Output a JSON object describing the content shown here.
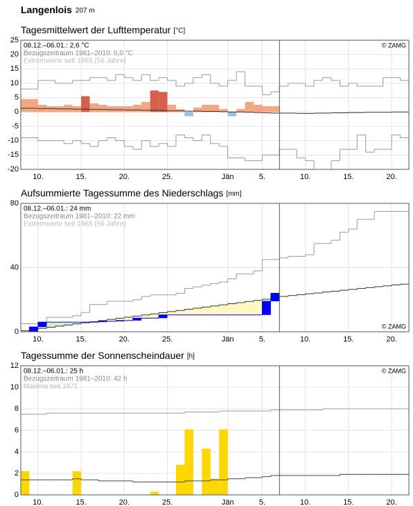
{
  "header": {
    "title": "Langenlois",
    "elevation": "207 m"
  },
  "chart_data": [
    {
      "type": "bar",
      "title": "Tagesmittelwert der Lufttemperatur",
      "unit": "[°C]",
      "annotations": [
        "08.12.–06.01.: 2,6 °C",
        "Bezugszeitraum 1981–2010: 0,0 °C",
        "Extremwerte seit 1965 (56 Jahre)"
      ],
      "credit": "© ZAMG",
      "credit_position": "top-right",
      "xlim": [
        0,
        45
      ],
      "xticks": [
        {
          "value": 2,
          "label": "10."
        },
        {
          "value": 7,
          "label": "15."
        },
        {
          "value": 12,
          "label": "20."
        },
        {
          "value": 17,
          "label": "25."
        },
        {
          "value": 24,
          "label": "Jän"
        },
        {
          "value": 28,
          "label": "5."
        },
        {
          "value": 33,
          "label": "10."
        },
        {
          "value": 38,
          "label": "15."
        },
        {
          "value": 43,
          "label": "20."
        }
      ],
      "ylim": [
        -20,
        25
      ],
      "yticks": [
        -20,
        -15,
        -10,
        -5,
        0,
        5,
        10,
        15,
        20,
        25
      ],
      "grid": true,
      "today": 30,
      "values": [
        4.5,
        4.5,
        2.5,
        2,
        2,
        2.5,
        2,
        5.5,
        3,
        2.5,
        2,
        2,
        2,
        2.5,
        3.5,
        7.5,
        7,
        2.5,
        1,
        -1.5,
        1.5,
        2.5,
        2.5,
        1,
        -1.5,
        1,
        3.5,
        2.5,
        2,
        2
      ],
      "colors": [
        "#f4a582",
        "#f4a582",
        "#f4a582",
        "#f4a582",
        "#f4a582",
        "#f4a582",
        "#f4a582",
        "#d6604d",
        "#f4a582",
        "#f4a582",
        "#f4a582",
        "#f4a582",
        "#f4a582",
        "#f4a582",
        "#f4a582",
        "#d6604d",
        "#d6604d",
        "#f4a582",
        "#f4a582",
        "#92c5de",
        "#f4a582",
        "#f4a582",
        "#f4a582",
        "#f4a582",
        "#92c5de",
        "#f4a582",
        "#f4a582",
        "#f4a582",
        "#f4a582",
        "#f4a582"
      ],
      "lines": [
        {
          "color": "#999999",
          "values": [
            8,
            8,
            11,
            11,
            10,
            10,
            11,
            11,
            12,
            12,
            11,
            13,
            12,
            11,
            13,
            11,
            12,
            11,
            9,
            10,
            12,
            13,
            10,
            9,
            11,
            14,
            9,
            9,
            6,
            7,
            9,
            10,
            10,
            9,
            11,
            12,
            11,
            9,
            10,
            9,
            9,
            9,
            12,
            12,
            11
          ]
        },
        {
          "color": "#999999",
          "values": [
            -9,
            -9,
            -10,
            -10,
            -10,
            -11,
            -10,
            -11,
            -12,
            -10,
            -9,
            -10,
            -12,
            -13,
            -10,
            -12,
            -11,
            -12,
            -8,
            -9,
            -10,
            -8,
            -11,
            -12,
            -16,
            -16,
            -17,
            -17,
            -15,
            -15,
            -13,
            -13,
            -16,
            -17,
            -20,
            -20,
            -17,
            -13,
            -13,
            -8,
            -14,
            -13,
            -13,
            -8,
            -9
          ]
        },
        {
          "color": "#333333",
          "values": [
            1.3,
            1.3,
            1.2,
            1.2,
            1.1,
            1.1,
            1,
            1,
            0.9,
            0.9,
            0.8,
            0.8,
            0.7,
            0.7,
            0.6,
            0.6,
            0.5,
            0.4,
            0.4,
            0.3,
            0.3,
            0.2,
            0.2,
            0.1,
            0,
            0,
            -0.1,
            -0.2,
            -0.3,
            -0.4,
            -0.4,
            -0.4,
            -0.5,
            -0.5,
            -0.4,
            -0.4,
            -0.3,
            -0.3,
            -0.2,
            -0.2,
            -0.1,
            -0.1,
            -0.1,
            0,
            0
          ]
        }
      ]
    },
    {
      "type": "line",
      "title": "Aufsummierte Tagessumme des Niederschlags",
      "unit": "[mm]",
      "annotations": [
        "08.12.–06.01.: 24 mm",
        "Bezugszeitraum 1981–2010: 22 mm",
        "Extremwerte seit 1965 (56 Jahre)"
      ],
      "credit": "© ZAMG",
      "credit_position": "bottom-right",
      "xlim": [
        0,
        45
      ],
      "xticks": [
        {
          "value": 2,
          "label": "10."
        },
        {
          "value": 7,
          "label": "15."
        },
        {
          "value": 12,
          "label": "20."
        },
        {
          "value": 17,
          "label": "25."
        },
        {
          "value": 24,
          "label": "Jän"
        },
        {
          "value": 28,
          "label": "5."
        },
        {
          "value": 33,
          "label": "10."
        },
        {
          "value": 38,
          "label": "15."
        },
        {
          "value": 43,
          "label": "20."
        }
      ],
      "ylim": [
        0,
        80
      ],
      "yticks": [
        0,
        40,
        80
      ],
      "grid": true,
      "today": 30,
      "color": "#0000ee",
      "fill_below": "#fff7c2",
      "fill_above": "#d8efc0",
      "values": [
        0,
        3,
        6,
        6,
        6,
        6,
        6,
        6,
        6,
        6.5,
        6.5,
        7,
        7,
        8.5,
        8.5,
        8.5,
        10.5,
        10.5,
        10.5,
        10.5,
        10.5,
        10.5,
        10.5,
        10.5,
        10.5,
        10.5,
        10.5,
        10.5,
        19,
        24
      ],
      "lines": [
        {
          "color": "#999999",
          "values": [
            5,
            5,
            5,
            9,
            9,
            9,
            10,
            12,
            17,
            17,
            19,
            19,
            19,
            20,
            22,
            23,
            23,
            23,
            24,
            27,
            28,
            29,
            30,
            31,
            33,
            36,
            36,
            38,
            45,
            45,
            46,
            47,
            47,
            48,
            55,
            55,
            57,
            62,
            64,
            70,
            70,
            75,
            75,
            75,
            75
          ]
        },
        {
          "color": "#333333",
          "values": [
            0.7,
            1.4,
            2.1,
            2.8,
            3.5,
            4.2,
            4.9,
            5.6,
            6.3,
            7,
            7.7,
            8.4,
            9.1,
            9.8,
            10.5,
            11.2,
            11.9,
            12.6,
            13.3,
            14,
            14.7,
            15.4,
            16.1,
            16.8,
            17.5,
            18.2,
            18.9,
            19.6,
            20.3,
            21.5,
            22,
            22.6,
            23.1,
            23.7,
            24.2,
            24.8,
            25.3,
            25.9,
            26.4,
            27,
            27.5,
            28.1,
            28.6,
            29.2,
            29.7
          ]
        }
      ]
    },
    {
      "type": "bar",
      "title": "Tagessumme der Sonnenscheindauer",
      "unit": "[h]",
      "annotations": [
        "08.12.–06.01.: 25 h",
        "Bezugszeitraum 1981–2010: 42 h",
        "Maxima seit 1971"
      ],
      "credit": "© ZAMG",
      "credit_position": "top-right",
      "xlim": [
        0,
        45
      ],
      "xticks": [
        {
          "value": 2,
          "label": "10."
        },
        {
          "value": 7,
          "label": "15."
        },
        {
          "value": 12,
          "label": "20."
        },
        {
          "value": 17,
          "label": "25."
        },
        {
          "value": 24,
          "label": "Jän"
        },
        {
          "value": 28,
          "label": "5."
        },
        {
          "value": 33,
          "label": "10."
        },
        {
          "value": 38,
          "label": "15."
        },
        {
          "value": 43,
          "label": "20."
        }
      ],
      "ylim": [
        0,
        12
      ],
      "yticks": [
        0,
        2,
        4,
        6,
        8,
        10,
        12
      ],
      "grid": true,
      "today": 30,
      "color": "#ffd700",
      "values": [
        2.2,
        0,
        0,
        0,
        0,
        0,
        2.2,
        0,
        0,
        0,
        0,
        0,
        0,
        0,
        0,
        0.3,
        0,
        0,
        2.8,
        6.1,
        0,
        4.3,
        1.5,
        6.1,
        0,
        0,
        0,
        0,
        0,
        0
      ],
      "lines": [
        {
          "color": "#999999",
          "values": [
            7.5,
            7.5,
            7.5,
            7.6,
            7.6,
            7.6,
            7.6,
            7.6,
            7.6,
            7.6,
            7.6,
            7.6,
            7.6,
            7.6,
            7.6,
            7.6,
            7.6,
            7.6,
            7.6,
            7.7,
            7.7,
            7.7,
            7.7,
            7.8,
            7.8,
            7.8,
            7.8,
            7.8,
            7.8,
            7.9,
            7.9,
            7.9,
            7.9,
            7.9,
            7.9,
            8,
            8,
            8,
            8,
            8,
            8,
            8,
            8,
            8,
            8
          ]
        },
        {
          "color": "#444444",
          "values": [
            1.4,
            1.4,
            1.4,
            1.4,
            1.4,
            1.4,
            1.5,
            1.4,
            1.4,
            1.3,
            1.3,
            1.3,
            1.3,
            1.2,
            1.2,
            1.2,
            1.2,
            1.2,
            1.2,
            1.3,
            1.3,
            1.3,
            1.4,
            1.4,
            1.5,
            1.5,
            1.6,
            1.6,
            1.7,
            1.8,
            1.8,
            1.8,
            1.8,
            1.8,
            1.8,
            1.8,
            1.8,
            1.9,
            1.9,
            1.9,
            1.9,
            1.9,
            1.9,
            1.9,
            1.9
          ]
        }
      ]
    }
  ]
}
